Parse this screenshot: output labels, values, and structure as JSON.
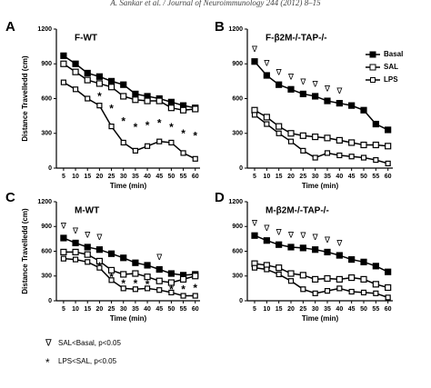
{
  "header": "A. Sankar et al. / Journal of Neuroimmunology 244 (2012) 8–15",
  "notes": [
    {
      "symbol": "∇",
      "text": "SAL<Basal, p<0.05"
    },
    {
      "symbol": "*",
      "text": "LPS<SAL, p<0.05"
    }
  ],
  "chart_data": [
    {
      "type": "line",
      "panel": "A",
      "title": "F-WT",
      "ylabel": "Distance Travelledd (cm)",
      "xlabel": "Time (min)",
      "x": [
        5,
        10,
        15,
        20,
        25,
        30,
        35,
        40,
        45,
        50,
        55,
        60
      ],
      "xlim": [
        2,
        62
      ],
      "xticks": [
        5,
        10,
        15,
        20,
        25,
        30,
        35,
        40,
        45,
        50,
        55,
        60
      ],
      "ylim": [
        0,
        1200
      ],
      "yticks": [
        0,
        300,
        600,
        900,
        1200
      ],
      "series": [
        {
          "name": "Basal",
          "color": "#000000",
          "marker": "filled",
          "values": [
            970,
            900,
            820,
            790,
            750,
            720,
            640,
            620,
            600,
            570,
            540,
            520
          ]
        },
        {
          "name": "SAL",
          "color": "#000000",
          "marker": "open",
          "values": [
            900,
            830,
            760,
            730,
            700,
            620,
            590,
            580,
            580,
            520,
            500,
            510
          ]
        },
        {
          "name": "LPS",
          "color": "#000000",
          "marker": "open",
          "values": [
            740,
            680,
            600,
            540,
            360,
            220,
            150,
            190,
            230,
            220,
            130,
            80
          ]
        }
      ],
      "sal_lt_basal": [],
      "lps_lt_sal": [
        20,
        25,
        30,
        35,
        40,
        45,
        50,
        55,
        60
      ]
    },
    {
      "type": "line",
      "panel": "B",
      "title": "F-β2M-/-TAP-/-",
      "xlabel": "Time (min)",
      "x": [
        5,
        10,
        15,
        20,
        25,
        30,
        35,
        40,
        45,
        50,
        55,
        60
      ],
      "xlim": [
        2,
        62
      ],
      "xticks": [
        5,
        10,
        15,
        20,
        25,
        30,
        35,
        40,
        45,
        50,
        55,
        60
      ],
      "ylim": [
        0,
        1200
      ],
      "yticks": [
        0,
        300,
        600,
        900,
        1200
      ],
      "legend": "upper right",
      "series": [
        {
          "name": "Basal",
          "color": "#000000",
          "marker": "filled",
          "values": [
            920,
            800,
            720,
            680,
            640,
            620,
            580,
            560,
            540,
            500,
            380,
            330
          ]
        },
        {
          "name": "SAL",
          "color": "#000000",
          "marker": "open",
          "values": [
            500,
            440,
            360,
            300,
            280,
            270,
            260,
            240,
            220,
            200,
            200,
            190
          ]
        },
        {
          "name": "LPS",
          "color": "#000000",
          "marker": "open",
          "values": [
            460,
            380,
            300,
            230,
            150,
            90,
            130,
            110,
            100,
            90,
            70,
            40
          ]
        }
      ],
      "sal_lt_basal": [
        5,
        10,
        15,
        20,
        25,
        30,
        35,
        40
      ],
      "lps_lt_sal": []
    },
    {
      "type": "line",
      "panel": "C",
      "title": "M-WT",
      "ylabel": "Distance Travelledd (cm)",
      "xlabel": "Time (min)",
      "x": [
        5,
        10,
        15,
        20,
        25,
        30,
        35,
        40,
        45,
        50,
        55,
        60
      ],
      "xlim": [
        2,
        62
      ],
      "xticks": [
        5,
        10,
        15,
        20,
        25,
        30,
        35,
        40,
        45,
        50,
        55,
        60
      ],
      "ylim": [
        0,
        1200
      ],
      "yticks": [
        0,
        300,
        600,
        900,
        1200
      ],
      "series": [
        {
          "name": "Basal",
          "color": "#000000",
          "marker": "filled",
          "values": [
            760,
            700,
            650,
            620,
            570,
            520,
            460,
            430,
            380,
            330,
            310,
            320
          ]
        },
        {
          "name": "SAL",
          "color": "#000000",
          "marker": "open",
          "values": [
            590,
            590,
            560,
            480,
            370,
            320,
            330,
            290,
            240,
            220,
            260,
            300
          ]
        },
        {
          "name": "LPS",
          "color": "#000000",
          "marker": "open",
          "values": [
            510,
            500,
            470,
            400,
            250,
            150,
            140,
            150,
            130,
            100,
            60,
            60
          ]
        }
      ],
      "sal_lt_basal": [
        5,
        10,
        15,
        20,
        45
      ],
      "lps_lt_sal": [
        20,
        25,
        30,
        35,
        40,
        50,
        55,
        60
      ]
    },
    {
      "type": "line",
      "panel": "D",
      "title": "M-β2M-/-TAP-/-",
      "xlabel": "Time (min)",
      "x": [
        5,
        10,
        15,
        20,
        25,
        30,
        35,
        40,
        45,
        50,
        55,
        60
      ],
      "xlim": [
        2,
        62
      ],
      "xticks": [
        5,
        10,
        15,
        20,
        25,
        30,
        35,
        40,
        45,
        50,
        55,
        60
      ],
      "ylim": [
        0,
        1200
      ],
      "yticks": [
        0,
        300,
        600,
        900,
        1200
      ],
      "series": [
        {
          "name": "Basal",
          "color": "#000000",
          "marker": "filled",
          "values": [
            790,
            730,
            680,
            650,
            640,
            620,
            590,
            550,
            500,
            470,
            420,
            350
          ]
        },
        {
          "name": "SAL",
          "color": "#000000",
          "marker": "open",
          "values": [
            450,
            430,
            400,
            330,
            310,
            260,
            270,
            260,
            280,
            260,
            200,
            160
          ]
        },
        {
          "name": "LPS",
          "color": "#000000",
          "marker": "open",
          "values": [
            400,
            380,
            320,
            240,
            140,
            90,
            120,
            150,
            110,
            100,
            90,
            40
          ]
        }
      ],
      "sal_lt_basal": [
        5,
        10,
        15,
        20,
        25,
        30,
        35,
        40
      ],
      "lps_lt_sal": []
    }
  ]
}
